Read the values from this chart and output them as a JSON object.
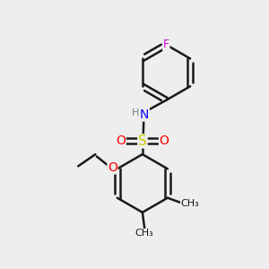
{
  "background_color": "#eeeeee",
  "bond_color": "#1a1a1a",
  "bond_width": 1.8,
  "atom_colors": {
    "F": "#cc00cc",
    "N": "#0000ff",
    "H": "#708090",
    "O": "#ff0000",
    "S": "#cccc00",
    "C": "#1a1a1a"
  },
  "font_size": 9,
  "figsize": [
    3.0,
    3.0
  ],
  "dpi": 100
}
